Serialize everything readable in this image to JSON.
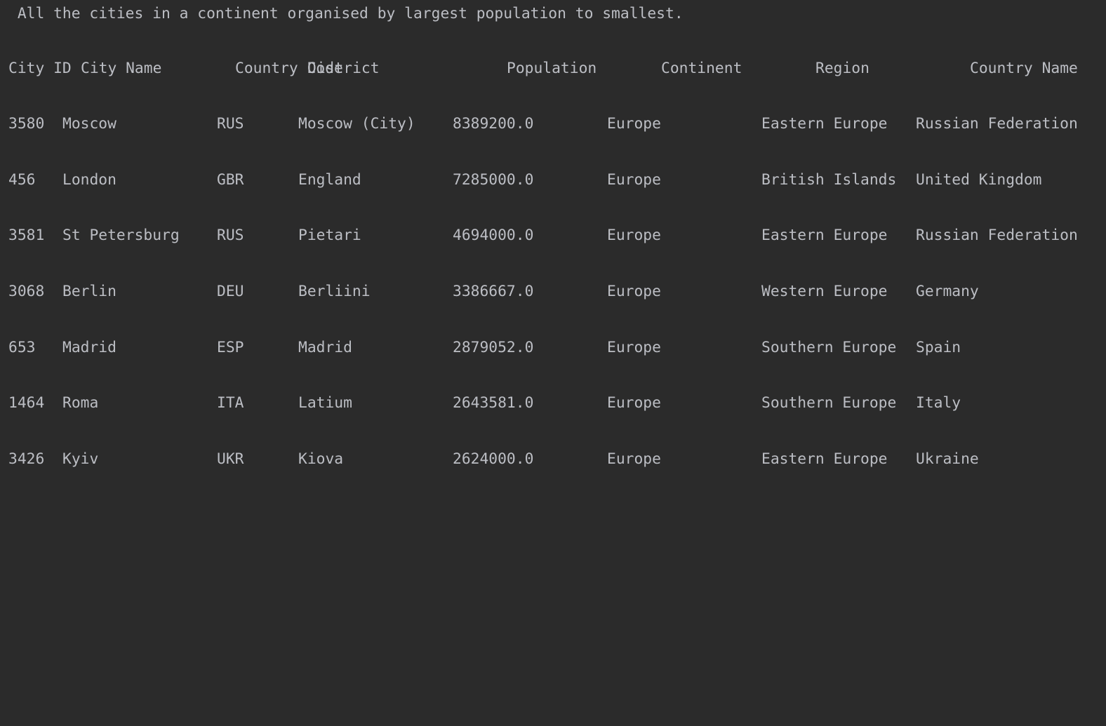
{
  "console": {
    "intro": " All the cities in a continent organised by largest population to smallest.",
    "separator": "------------------------------------------------------------------------------------------------------------------------------------------------------------------------------------------------------------------------------------------------",
    "headers": {
      "city_id": "City ID",
      "city_name": "City Name",
      "country_code": "Country Code",
      "district": "District",
      "population": "Population",
      "continent": "Continent",
      "region": "Region",
      "country_name": "Country Name"
    },
    "rows": [
      {
        "id": "3580",
        "name": "Moscow",
        "code": "RUS",
        "district": "Moscow (City)",
        "population": "8389200.0",
        "continent": "Europe",
        "region": "Eastern Europe",
        "country": "Russian Federation"
      },
      {
        "id": "456",
        "name": "London",
        "code": "GBR",
        "district": "England",
        "population": "7285000.0",
        "continent": "Europe",
        "region": "British Islands",
        "country": "United Kingdom"
      },
      {
        "id": "3581",
        "name": "St Petersburg",
        "code": "RUS",
        "district": "Pietari",
        "population": "4694000.0",
        "continent": "Europe",
        "region": "Eastern Europe",
        "country": "Russian Federation"
      },
      {
        "id": "3068",
        "name": "Berlin",
        "code": "DEU",
        "district": "Berliini",
        "population": "3386667.0",
        "continent": "Europe",
        "region": "Western Europe",
        "country": "Germany"
      },
      {
        "id": "653",
        "name": "Madrid",
        "code": "ESP",
        "district": "Madrid",
        "population": "2879052.0",
        "continent": "Europe",
        "region": "Southern Europe",
        "country": "Spain"
      },
      {
        "id": "1464",
        "name": "Roma",
        "code": "ITA",
        "district": "Latium",
        "population": "2643581.0",
        "continent": "Europe",
        "region": "Southern Europe",
        "country": "Italy"
      },
      {
        "id": "3426",
        "name": "Kyiv",
        "code": "UKR",
        "district": "Kiova",
        "population": "2624000.0",
        "continent": "Europe",
        "region": "Eastern Europe",
        "country": "Ukraine"
      }
    ]
  }
}
